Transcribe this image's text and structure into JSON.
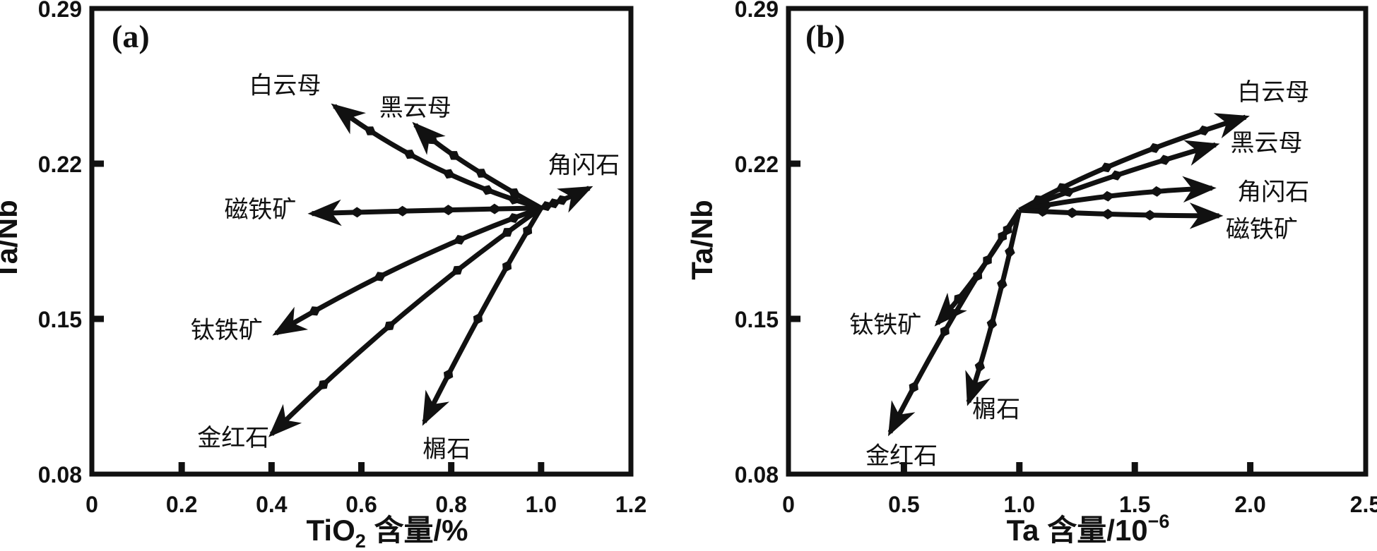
{
  "colors": {
    "ink": "#111111",
    "background": "#ffffff"
  },
  "chart_data": {
    "type": "vector-diagram",
    "description_visible_text_only": true,
    "panels": [
      {
        "id": "a",
        "panel_label": "(a)",
        "x_axis": {
          "title_parts": [
            {
              "t": "TiO"
            },
            {
              "t": "2",
              "style": "sub"
            },
            {
              "t": " 含量/%"
            }
          ],
          "range": [
            0,
            1.2
          ],
          "ticks": [
            {
              "v": 0,
              "label": "0"
            },
            {
              "v": 0.2,
              "label": "0.2"
            },
            {
              "v": 0.4,
              "label": "0.4"
            },
            {
              "v": 0.6,
              "label": "0.6"
            },
            {
              "v": 0.8,
              "label": "0.8"
            },
            {
              "v": 1.0,
              "label": "1.0"
            },
            {
              "v": 1.2,
              "label": "1.2"
            }
          ]
        },
        "y_axis": {
          "title": "Ta/Nb",
          "range": [
            0.08,
            0.29
          ],
          "ticks": [
            {
              "v": 0.29,
              "label": "0.29"
            },
            {
              "v": 0.22,
              "label": "0.22"
            },
            {
              "v": 0.15,
              "label": "0.15"
            },
            {
              "v": 0.08,
              "label": "0.08"
            }
          ]
        },
        "origin": [
          1.0,
          0.2
        ],
        "vectors": [
          {
            "name": "muscovite",
            "label": "白云母",
            "end": [
              0.54,
              0.246
            ],
            "ctrl": [
              0.745,
              0.215
            ],
            "markers": [
              0.12,
              0.24,
              0.42,
              0.61,
              0.81
            ],
            "label_at": [
              0.43,
              0.2555
            ]
          },
          {
            "name": "biotite",
            "label": "黑云母",
            "end": [
              0.72,
              0.2375
            ],
            "ctrl": [
              0.79,
              0.2235
            ],
            "markers": [
              0.15,
              0.36,
              0.57,
              0.78
            ],
            "label_at": [
              0.72,
              0.2455
            ]
          },
          {
            "name": "hornblende",
            "label": "角闪石",
            "end": [
              1.107,
              0.209
            ],
            "ctrl": [
              1.05,
              0.2035
            ],
            "markers": [
              0.12,
              0.28,
              0.45
            ],
            "label_at": [
              1.095,
              0.2195
            ]
          },
          {
            "name": "magnetite",
            "label": "磁铁矿",
            "end": [
              0.49,
              0.1975
            ],
            "ctrl": [
              0.74,
              0.199
            ],
            "markers": [
              0.2,
              0.4,
              0.6,
              0.8
            ],
            "label_at": [
              0.375,
              0.1995
            ]
          },
          {
            "name": "ilmenite",
            "label": "钛铁矿",
            "end": [
              0.41,
              0.1435
            ],
            "ctrl": [
              0.695,
              0.178
            ],
            "markers": [
              0.1,
              0.3,
              0.6,
              0.85
            ],
            "label_at": [
              0.3,
              0.145
            ]
          },
          {
            "name": "rutile",
            "label": "金红石",
            "end": [
              0.4,
              0.098
            ],
            "ctrl": [
              0.685,
              0.155
            ],
            "markers": [
              0.12,
              0.3,
              0.55,
              0.8
            ],
            "label_at": [
              0.315,
              0.0965
            ]
          },
          {
            "name": "titanite",
            "label": "榍石",
            "end": [
              0.74,
              0.1035
            ],
            "ctrl": [
              0.875,
              0.158
            ],
            "markers": [
              0.12,
              0.3,
              0.55,
              0.8
            ],
            "label_at": [
              0.79,
              0.0915
            ]
          }
        ]
      },
      {
        "id": "b",
        "panel_label": "(b)",
        "x_axis": {
          "title_parts": [
            {
              "t": "Ta 含量/10"
            },
            {
              "t": "−6",
              "style": "sup"
            }
          ],
          "range": [
            0,
            2.5
          ],
          "ticks": [
            {
              "v": 0,
              "label": "0"
            },
            {
              "v": 0.5,
              "label": "0.5"
            },
            {
              "v": 1.0,
              "label": "1.0"
            },
            {
              "v": 1.5,
              "label": "1.5"
            },
            {
              "v": 2.0,
              "label": "2.0"
            },
            {
              "v": 2.5,
              "label": "2.5"
            }
          ]
        },
        "y_axis": {
          "title": "Ta/Nb",
          "range": [
            0.08,
            0.29
          ],
          "ticks": [
            {
              "v": 0.29,
              "label": "0.29"
            },
            {
              "v": 0.22,
              "label": "0.22"
            },
            {
              "v": 0.15,
              "label": "0.15"
            },
            {
              "v": 0.08,
              "label": "0.08"
            }
          ]
        },
        "origin": [
          1.0,
          0.199
        ],
        "vectors": [
          {
            "name": "muscovite",
            "label": "白云母",
            "end": [
              1.98,
              0.241
            ],
            "ctrl": [
              1.4,
              0.2225
            ],
            "markers": [
              0.1,
              0.22,
              0.43,
              0.64,
              0.84
            ],
            "label_at": [
              2.1,
              0.2525
            ]
          },
          {
            "name": "biotite",
            "label": "黑云母",
            "end": [
              1.85,
              0.2285
            ],
            "ctrl": [
              1.38,
              0.2145
            ],
            "markers": [
              0.1,
              0.27,
              0.52,
              0.76
            ],
            "label_at": [
              2.07,
              0.2295
            ]
          },
          {
            "name": "hornblende",
            "label": "角闪石",
            "end": [
              1.835,
              0.209
            ],
            "ctrl": [
              1.38,
              0.207
            ],
            "markers": [
              0.15,
              0.48,
              0.73
            ],
            "label_at": [
              2.1,
              0.2075
            ]
          },
          {
            "name": "magnetite",
            "label": "磁铁矿",
            "end": [
              1.865,
              0.1965
            ],
            "ctrl": [
              1.42,
              0.1965
            ],
            "markers": [
              0.12,
              0.27,
              0.45,
              0.66
            ],
            "label_at": [
              2.05,
              0.1905
            ]
          },
          {
            "name": "ilmenite",
            "label": "钛铁矿",
            "end": [
              0.645,
              0.148
            ],
            "ctrl": [
              0.83,
              0.169
            ],
            "markers": [
              0.15,
              0.4,
              0.75
            ],
            "label_at": [
              0.42,
              0.1475
            ]
          },
          {
            "name": "rutile",
            "label": "金红石",
            "end": [
              0.44,
              0.0988
            ],
            "ctrl": [
              0.69,
              0.15
            ],
            "markers": [
              0.12,
              0.3,
              0.55,
              0.8
            ],
            "label_at": [
              0.49,
              0.0885
            ]
          },
          {
            "name": "titanite",
            "label": "榍石",
            "end": [
              0.78,
              0.1125
            ],
            "ctrl": [
              0.885,
              0.145
            ],
            "markers": [
              0.18,
              0.33,
              0.53,
              0.77
            ],
            "label_at": [
              0.9,
              0.1095
            ]
          }
        ]
      }
    ]
  }
}
